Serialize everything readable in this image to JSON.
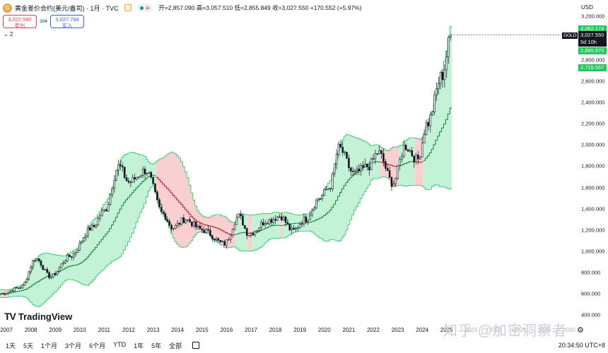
{
  "header": {
    "symbol_icon": "gold-coin-icon",
    "title": "黄金差价合约(美元/盎司) · 1月 · TVC",
    "pill_label": "≋",
    "ohlc": "开=2,857.090 高=3,057.510 低=2,855.849 收=3,027.550 +170.552 (+5.97%)"
  },
  "trade": {
    "sell_price": "3,027.590",
    "sell_label": "卖出",
    "spread": "204",
    "buy_price": "3,027.794",
    "buy_label": "买入"
  },
  "study_toggle": "⌄ 2",
  "axis": {
    "currency": "USD",
    "y_ticks": [
      "3,200.000",
      "2,800.000",
      "2,600.000",
      "2,400.000",
      "2,200.000",
      "2,000.000",
      "1,800.000",
      "1,600.000",
      "1,400.000",
      "1,200.000",
      "1,000.000",
      "800.000",
      "600.000",
      "400.000"
    ],
    "tags": {
      "upper": "3,062.174",
      "price_symbol": "GOLD",
      "price": "3,027.550",
      "countdown": "5d 10h",
      "middle": "2,895.970",
      "lower": "2,729.567"
    },
    "x_ticks": [
      "2007",
      "2008",
      "2009",
      "2010",
      "2011",
      "2012",
      "2013",
      "2014",
      "2015",
      "2016",
      "2017",
      "2018",
      "2019",
      "2020",
      "2021",
      "2022",
      "2023",
      "2024",
      "2025",
      "2026",
      "2027",
      "2028",
      "2029",
      "2030"
    ]
  },
  "colors": {
    "band_up": "#b9f0cf",
    "band_down": "#f8c7c9",
    "band_edge": "#22c55e",
    "mid_up": "#15803d",
    "mid_down": "#b91c1c",
    "candle": "#131722"
  },
  "toolbar": {
    "timeframes": [
      "1天",
      "5天",
      "1个月",
      "3个月",
      "6个月",
      "YTD",
      "1年",
      "5年",
      "全部"
    ],
    "clock": "20:34:50 UTC+8"
  },
  "logo": "TradingView",
  "watermark": "知乎 @加密洞察者",
  "chart_data": {
    "type": "candlestick",
    "title": "黄金差价合约(美元/盎司) · 1月 · TVC",
    "ylabel": "USD",
    "ylim": [
      400,
      3200
    ],
    "x_range": [
      "2007",
      "2030"
    ],
    "anchors": [
      {
        "date": 2006.8,
        "price": 600
      },
      {
        "date": 2007.6,
        "price": 660
      },
      {
        "date": 2008.2,
        "price": 930
      },
      {
        "date": 2008.8,
        "price": 760
      },
      {
        "date": 2009.6,
        "price": 950
      },
      {
        "date": 2010.5,
        "price": 1220
      },
      {
        "date": 2011.0,
        "price": 1380
      },
      {
        "date": 2011.6,
        "price": 1800
      },
      {
        "date": 2012.0,
        "price": 1650
      },
      {
        "date": 2012.7,
        "price": 1760
      },
      {
        "date": 2013.4,
        "price": 1350
      },
      {
        "date": 2013.8,
        "price": 1220
      },
      {
        "date": 2014.3,
        "price": 1300
      },
      {
        "date": 2015.0,
        "price": 1200
      },
      {
        "date": 2015.9,
        "price": 1070
      },
      {
        "date": 2016.5,
        "price": 1330
      },
      {
        "date": 2016.9,
        "price": 1160
      },
      {
        "date": 2017.7,
        "price": 1290
      },
      {
        "date": 2018.2,
        "price": 1330
      },
      {
        "date": 2018.7,
        "price": 1190
      },
      {
        "date": 2019.2,
        "price": 1300
      },
      {
        "date": 2019.8,
        "price": 1500
      },
      {
        "date": 2020.2,
        "price": 1600
      },
      {
        "date": 2020.6,
        "price": 1970
      },
      {
        "date": 2021.2,
        "price": 1730
      },
      {
        "date": 2021.8,
        "price": 1800
      },
      {
        "date": 2022.2,
        "price": 1930
      },
      {
        "date": 2022.8,
        "price": 1640
      },
      {
        "date": 2023.3,
        "price": 1990
      },
      {
        "date": 2023.8,
        "price": 1860
      },
      {
        "date": 2024.2,
        "price": 2200
      },
      {
        "date": 2024.8,
        "price": 2650
      },
      {
        "date": 2025.2,
        "price": 3028
      }
    ]
  }
}
